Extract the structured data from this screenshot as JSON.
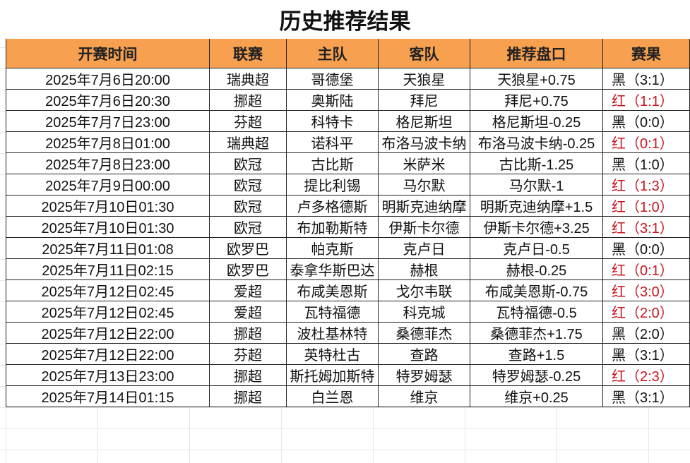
{
  "title": "历史推荐结果",
  "table": {
    "header": [
      "开赛时间",
      "联赛",
      "主队",
      "客队",
      "推荐盘口",
      "赛果"
    ],
    "rows": [
      [
        "2025年7月6日20:00",
        "瑞典超",
        "哥德堡",
        "天狼星",
        "天狼星+0.75",
        "黑（3:1）"
      ],
      [
        "2025年7月6日20:30",
        "挪超",
        "奥斯陆",
        "拜尼",
        "拜尼+0.75",
        "红（1:1）"
      ],
      [
        "2025年7月7日23:00",
        "芬超",
        "科特卡",
        "格尼斯坦",
        "格尼斯坦-0.25",
        "黑（0:0）"
      ],
      [
        "2025年7月8日01:00",
        "瑞典超",
        "诺科平",
        "布洛马波卡纳",
        "布洛马波卡纳-0.25",
        "红（0:1）"
      ],
      [
        "2025年7月8日23:00",
        "欧冠",
        "古比斯",
        "米萨米",
        "古比斯-1.25",
        "黑（1:0）"
      ],
      [
        "2025年7月9日00:00",
        "欧冠",
        "提比利锡",
        "马尔默",
        "马尔默-1",
        "红（1:3）"
      ],
      [
        "2025年7月10日01:30",
        "欧冠",
        "卢多格德斯",
        "明斯克迪纳摩",
        "明斯克迪纳摩+1.5",
        "红（1:0）"
      ],
      [
        "2025年7月10日01:30",
        "欧冠",
        "布加勒斯特",
        "伊斯卡尔德",
        "伊斯卡尔德+3.25",
        "红（3:1）"
      ],
      [
        "2025年7月11日01:08",
        "欧罗巴",
        "帕克斯",
        "克卢日",
        "克卢日-0.5",
        "黑（0:0）"
      ],
      [
        "2025年7月11日02:15",
        "欧罗巴",
        "泰拿华斯巴达",
        "赫根",
        "赫根-0.25",
        "红（0:1）"
      ],
      [
        "2025年7月12日02:45",
        "爱超",
        "布咸美恩斯",
        "戈尔韦联",
        "布咸美恩斯-0.75",
        "红（3:0）"
      ],
      [
        "2025年7月12日02:45",
        "爱超",
        "瓦特福德",
        "科克城",
        "瓦特福德-0.5",
        "红（2:0）"
      ],
      [
        "2025年7月12日22:00",
        "挪超",
        "波杜基林特",
        "桑德菲杰",
        "桑德菲杰+1.75",
        "黑（2:0）"
      ],
      [
        "2025年7月12日22:00",
        "芬超",
        "英特杜古",
        "查路",
        "查路+1.5",
        "黑（3:1）"
      ],
      [
        "2025年7月13日23:00",
        "挪超",
        "斯托姆加斯特",
        "特罗姆瑟",
        "特罗姆瑟-0.25",
        "红（2:3）"
      ],
      [
        "2025年7月14日01:15",
        "挪超",
        "白兰恩",
        "维京",
        "维京+0.25",
        "黑（3:1）"
      ]
    ]
  }
}
